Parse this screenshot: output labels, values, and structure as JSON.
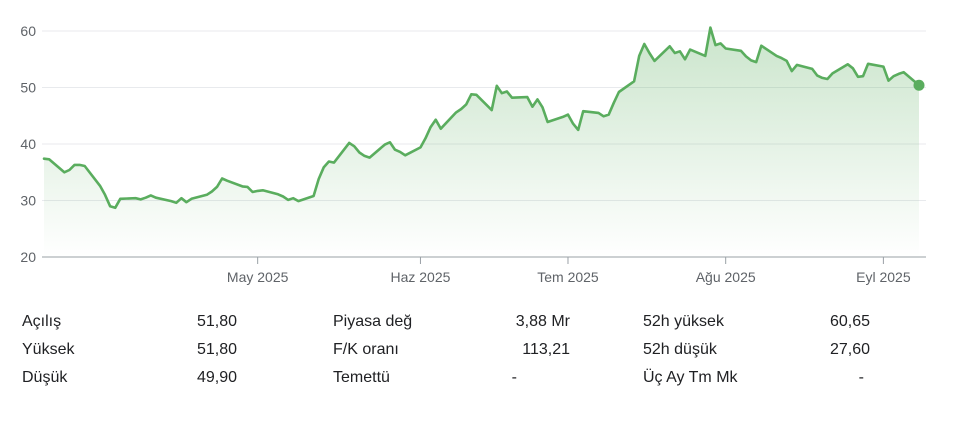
{
  "chart_data": {
    "type": "area",
    "title": "",
    "xlabel": "",
    "ylabel": "",
    "ylim": [
      20,
      60
    ],
    "yticks": [
      20,
      30,
      40,
      50,
      60
    ],
    "xticks": [
      {
        "label": "May 2025",
        "date": "2025-05-01"
      },
      {
        "label": "Haz 2025",
        "date": "2025-06-02"
      },
      {
        "label": "Tem 2025",
        "date": "2025-07-01"
      },
      {
        "label": "Ağu 2025",
        "date": "2025-08-01"
      },
      {
        "label": "Eyl 2025",
        "date": "2025-09-01"
      }
    ],
    "grid": "horizontal",
    "line_color": "#5aad5e",
    "fill_color": "#5aad5e",
    "x": [
      "2025-03-20",
      "2025-03-21",
      "2025-03-24",
      "2025-03-25",
      "2025-03-26",
      "2025-03-27",
      "2025-03-28",
      "2025-03-31",
      "2025-04-01",
      "2025-04-02",
      "2025-04-03",
      "2025-04-04",
      "2025-04-07",
      "2025-04-08",
      "2025-04-09",
      "2025-04-10",
      "2025-04-11",
      "2025-04-14",
      "2025-04-15",
      "2025-04-16",
      "2025-04-17",
      "2025-04-18",
      "2025-04-21",
      "2025-04-22",
      "2025-04-23",
      "2025-04-24",
      "2025-04-25",
      "2025-04-28",
      "2025-04-29",
      "2025-04-30",
      "2025-05-01",
      "2025-05-02",
      "2025-05-05",
      "2025-05-06",
      "2025-05-07",
      "2025-05-08",
      "2025-05-09",
      "2025-05-12",
      "2025-05-13",
      "2025-05-14",
      "2025-05-15",
      "2025-05-16",
      "2025-05-19",
      "2025-05-20",
      "2025-05-21",
      "2025-05-22",
      "2025-05-23",
      "2025-05-26",
      "2025-05-27",
      "2025-05-28",
      "2025-05-29",
      "2025-05-30",
      "2025-06-02",
      "2025-06-03",
      "2025-06-04",
      "2025-06-05",
      "2025-06-06",
      "2025-06-09",
      "2025-06-10",
      "2025-06-11",
      "2025-06-12",
      "2025-06-13",
      "2025-06-16",
      "2025-06-17",
      "2025-06-18",
      "2025-06-19",
      "2025-06-20",
      "2025-06-23",
      "2025-06-24",
      "2025-06-25",
      "2025-06-26",
      "2025-06-27",
      "2025-06-30",
      "2025-07-01",
      "2025-07-02",
      "2025-07-03",
      "2025-07-04",
      "2025-07-07",
      "2025-07-08",
      "2025-07-09",
      "2025-07-10",
      "2025-07-11",
      "2025-07-14",
      "2025-07-15",
      "2025-07-16",
      "2025-07-17",
      "2025-07-18",
      "2025-07-21",
      "2025-07-22",
      "2025-07-23",
      "2025-07-24",
      "2025-07-25",
      "2025-07-28",
      "2025-07-29",
      "2025-07-30",
      "2025-07-31",
      "2025-08-01",
      "2025-08-04",
      "2025-08-05",
      "2025-08-06",
      "2025-08-07",
      "2025-08-08",
      "2025-08-11",
      "2025-08-12",
      "2025-08-13",
      "2025-08-14",
      "2025-08-15",
      "2025-08-18",
      "2025-08-19",
      "2025-08-20",
      "2025-08-21",
      "2025-08-22",
      "2025-08-25",
      "2025-08-26",
      "2025-08-27",
      "2025-08-28",
      "2025-08-29",
      "2025-09-01",
      "2025-09-02",
      "2025-09-03",
      "2025-09-04",
      "2025-09-05",
      "2025-09-08"
    ],
    "values": [
      37.4,
      37.3,
      35.0,
      35.4,
      36.3,
      36.3,
      36.1,
      32.6,
      31.0,
      29.0,
      28.7,
      30.3,
      30.4,
      30.2,
      30.5,
      30.9,
      30.5,
      29.9,
      29.6,
      30.4,
      29.7,
      30.3,
      31.0,
      31.6,
      32.4,
      33.9,
      33.5,
      32.5,
      32.4,
      31.5,
      31.7,
      31.8,
      31.1,
      30.7,
      30.1,
      30.4,
      29.9,
      30.8,
      33.8,
      35.9,
      36.9,
      36.7,
      40.2,
      39.6,
      38.5,
      37.9,
      37.6,
      39.9,
      40.3,
      39.0,
      38.6,
      38.0,
      39.4,
      41.0,
      43.0,
      44.3,
      42.7,
      45.6,
      46.2,
      47.0,
      48.8,
      48.7,
      46.0,
      50.3,
      49.0,
      49.3,
      48.2,
      48.3,
      46.6,
      47.9,
      46.5,
      43.9,
      44.8,
      45.2,
      43.6,
      42.5,
      45.8,
      45.5,
      44.9,
      45.2,
      47.3,
      49.2,
      51.1,
      55.6,
      57.7,
      56.1,
      54.7,
      57.3,
      56.1,
      56.4,
      55.0,
      56.7,
      55.6,
      60.6,
      57.5,
      57.8,
      56.9,
      56.5,
      55.5,
      54.8,
      54.5,
      57.4,
      55.6,
      55.2,
      54.7,
      52.9,
      54.0,
      53.3,
      52.1,
      51.7,
      51.5,
      52.5,
      54.1,
      53.4,
      51.9,
      52.0,
      54.2,
      53.7,
      51.2,
      52.0,
      52.4,
      52.7,
      50.4
    ]
  },
  "stats": {
    "col1": [
      {
        "label": "Açılış",
        "value": "51,80"
      },
      {
        "label": "Yüksek",
        "value": "51,80"
      },
      {
        "label": "Düşük",
        "value": "49,90"
      }
    ],
    "col2": [
      {
        "label": "Piyasa değ",
        "value": "3,88 Mr"
      },
      {
        "label": "F/K oranı",
        "value": "113,21"
      },
      {
        "label": "Temettü",
        "value": "-"
      }
    ],
    "col3": [
      {
        "label": "52h yüksek",
        "value": "60,65"
      },
      {
        "label": "52h düşük",
        "value": "27,60"
      },
      {
        "label": "Üç Ay Tm Mk",
        "value": "-"
      }
    ]
  }
}
